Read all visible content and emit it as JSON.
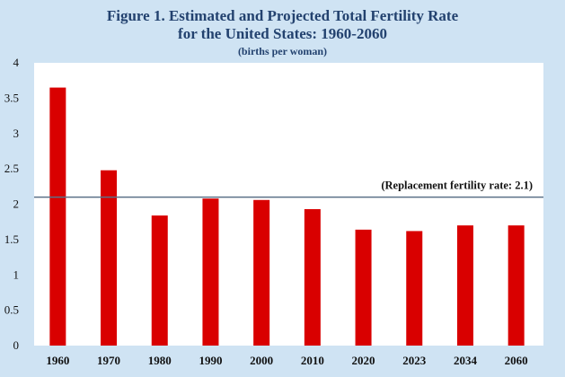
{
  "chart_data": {
    "type": "bar",
    "title_line1": "Figure 1. Estimated and Projected Total Fertility Rate",
    "title_line2": "for the United States: 1960-2060",
    "subtitle": "(births per woman)",
    "xlabel": "",
    "ylabel": "",
    "categories": [
      "1960",
      "1970",
      "1980",
      "1990",
      "2000",
      "2010",
      "2020",
      "2023",
      "2034",
      "2060"
    ],
    "values": [
      3.65,
      2.48,
      1.84,
      2.08,
      2.06,
      1.93,
      1.64,
      1.62,
      1.7,
      1.7
    ],
    "ylim": [
      0,
      4
    ],
    "yticks": [
      "0",
      "0.5",
      "1",
      "1.5",
      "2",
      "2.5",
      "3",
      "3.5",
      "4"
    ],
    "ytick_values": [
      0,
      0.5,
      1,
      1.5,
      2,
      2.5,
      3,
      3.5,
      4
    ],
    "reference_line": {
      "value": 2.1,
      "label": "(Replacement fertility rate: 2.1)"
    },
    "grid": false,
    "colors": {
      "bar": "#d90000",
      "reference": "#5b7188",
      "background": "#cfe3f3",
      "plot_area": "#ffffff",
      "title": "#23426f"
    }
  }
}
